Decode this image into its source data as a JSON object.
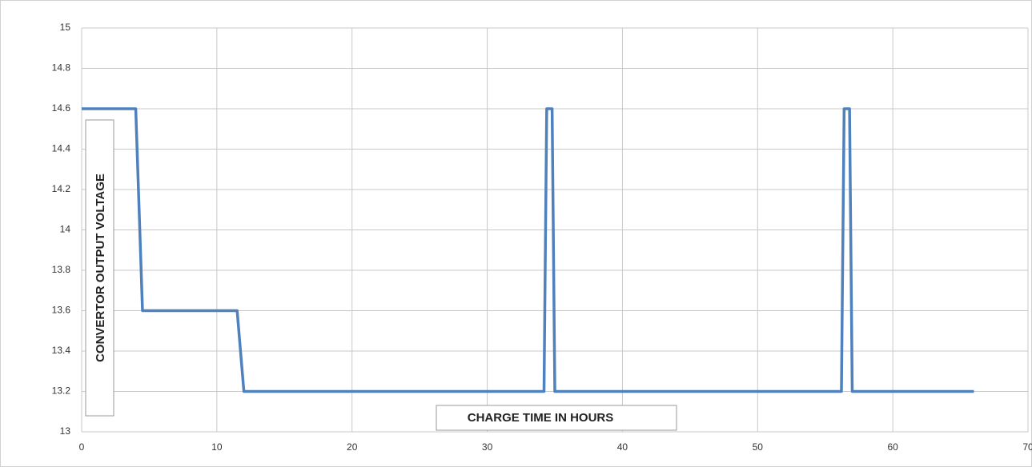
{
  "chart_data": {
    "type": "line",
    "x_label": "CHARGE TIME IN HOURS",
    "y_label": "CONVERTOR OUTPUT VOLTAGE",
    "series": [
      {
        "color": "#4f81bd",
        "x": [
          0,
          3.5,
          4,
          4.5,
          11.5,
          12,
          34.2,
          34.4,
          34.8,
          35,
          56.2,
          56.4,
          56.8,
          57,
          66
        ],
        "values": [
          14.6,
          14.6,
          14.6,
          13.6,
          13.6,
          13.2,
          13.2,
          14.6,
          14.6,
          13.2,
          13.2,
          14.6,
          14.6,
          13.2,
          13.2
        ]
      }
    ],
    "xlim": [
      0,
      70
    ],
    "xticks": [
      0,
      10,
      20,
      30,
      40,
      50,
      60,
      70
    ],
    "ylim": [
      13,
      15
    ],
    "yticks": [
      13,
      13.2,
      13.4,
      13.6,
      13.8,
      14,
      14.2,
      14.4,
      14.6,
      14.8,
      15
    ],
    "grid": true
  }
}
